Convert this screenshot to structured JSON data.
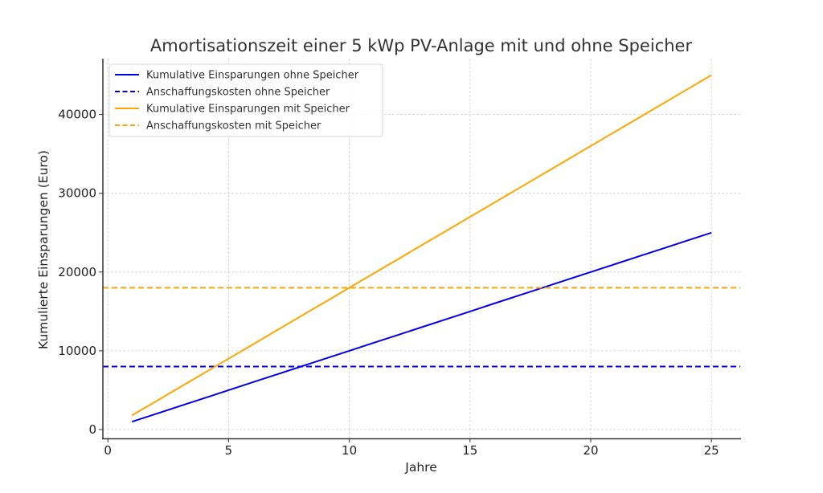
{
  "chart_data": {
    "type": "line",
    "title": "Amortisationszeit einer 5 kWp PV-Anlage mit und ohne Speicher",
    "xlabel": "Jahre",
    "ylabel": "Kumulierte Einsparungen (Euro)",
    "xlim": [
      -0.2,
      26.2
    ],
    "ylim": [
      -1200,
      47200
    ],
    "xticks": [
      0,
      5,
      10,
      15,
      20,
      25
    ],
    "xtick_labels": [
      "0",
      "5",
      "10",
      "15",
      "20",
      "25"
    ],
    "yticks": [
      0,
      10000,
      20000,
      30000,
      40000
    ],
    "ytick_labels": [
      "0",
      "10000",
      "20000",
      "30000",
      "40000"
    ],
    "grid": true,
    "legend_position": "upper left",
    "x": [
      1,
      2,
      3,
      4,
      5,
      6,
      7,
      8,
      9,
      10,
      11,
      12,
      13,
      14,
      15,
      16,
      17,
      18,
      19,
      20,
      21,
      22,
      23,
      24,
      25
    ],
    "series": [
      {
        "name": "Kumulative Einsparungen ohne Speicher",
        "color": "#0000ee",
        "style": "solid",
        "values": [
          1000,
          2000,
          3000,
          4000,
          5000,
          6000,
          7000,
          8000,
          9000,
          10000,
          11000,
          12000,
          13000,
          14000,
          15000,
          16000,
          17000,
          18000,
          19000,
          20000,
          21000,
          22000,
          23000,
          24000,
          25000
        ]
      },
      {
        "name": "Anschaffungskosten ohne Speicher",
        "color": "#0000ee",
        "style": "dashed",
        "hline": 8000
      },
      {
        "name": "Kumulative Einsparungen mit Speicher",
        "color": "#ffa500",
        "style": "solid",
        "values": [
          1800,
          3600,
          5400,
          7200,
          9000,
          10800,
          12600,
          14400,
          16200,
          18000,
          19800,
          21600,
          23400,
          25200,
          27000,
          28800,
          30600,
          32400,
          34200,
          36000,
          37800,
          39600,
          41400,
          43200,
          45000
        ]
      },
      {
        "name": "Anschaffungskosten mit Speicher",
        "color": "#ffa500",
        "style": "dashed",
        "hline": 18000
      }
    ]
  }
}
